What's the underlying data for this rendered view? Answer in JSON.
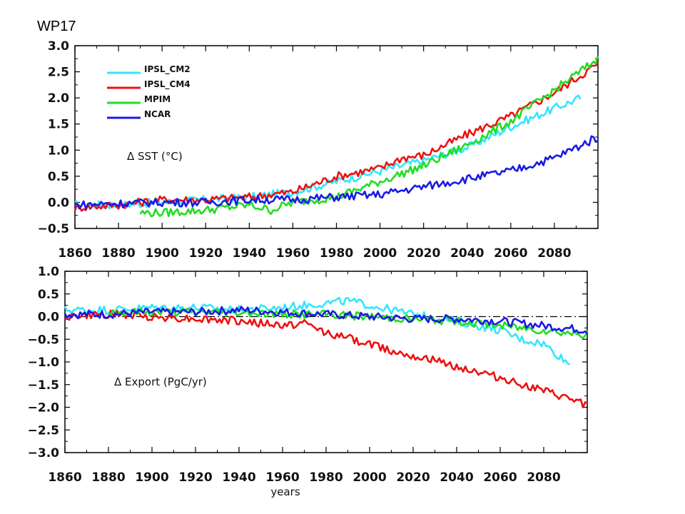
{
  "page": {
    "title": "WP17"
  },
  "colors": {
    "IPSL CM2": "#33e6ff",
    "IPSL CM4": "#ee1111",
    "MPIM": "#22dd22",
    "NCAR": "#1a1ae6"
  },
  "chart_data": [
    {
      "type": "line",
      "annotation": "Δ SST (°C)",
      "xlabel": "",
      "ylabel": "",
      "xlim": [
        1860,
        2100
      ],
      "ylim": [
        -0.5,
        3.0
      ],
      "x_ticks": [
        1860,
        1880,
        1900,
        1920,
        1940,
        1960,
        1980,
        2000,
        2020,
        2040,
        2060,
        2080
      ],
      "x_tick_labels": [
        "1860",
        "1880",
        "1900",
        "1920",
        "1940",
        "1960",
        "1980",
        "2000",
        "2020",
        "2040",
        "2060",
        "2080"
      ],
      "y_ticks": [
        -0.5,
        0.0,
        0.5,
        1.0,
        1.5,
        2.0,
        2.5,
        3.0
      ],
      "y_tick_labels": [
        "−0.5",
        "0.0",
        "0.5",
        "1.0",
        "1.5",
        "2.0",
        "2.5",
        "3.0"
      ],
      "legend": {
        "position": "top-left",
        "entries": [
          "IPSL_CM2",
          "IPSL_CM4",
          "MPIM",
          "NCAR"
        ]
      },
      "series": [
        {
          "name": "IPSL_CM2",
          "color": "#33e6ff",
          "x": [
            1860,
            1880,
            1900,
            1920,
            1940,
            1960,
            1970,
            1980,
            2000,
            2020,
            2040,
            2060,
            2080,
            2092
          ],
          "y": [
            -0.05,
            -0.05,
            0.0,
            0.05,
            0.1,
            0.2,
            0.3,
            0.4,
            0.6,
            0.8,
            1.05,
            1.45,
            1.8,
            2.0
          ]
        },
        {
          "name": "IPSL_CM4",
          "color": "#ee1111",
          "x": [
            1860,
            1880,
            1900,
            1920,
            1940,
            1960,
            1970,
            1980,
            2000,
            2010,
            2020,
            2040,
            2060,
            2080,
            2100
          ],
          "y": [
            -0.1,
            -0.05,
            0.05,
            0.05,
            0.1,
            0.2,
            0.35,
            0.5,
            0.65,
            0.85,
            0.9,
            1.3,
            1.65,
            2.1,
            2.65
          ]
        },
        {
          "name": "MPIM",
          "color": "#22dd22",
          "x": [
            1890,
            1900,
            1920,
            1940,
            1950,
            1960,
            1980,
            2000,
            2020,
            2040,
            2060,
            2080,
            2100
          ],
          "y": [
            -0.2,
            -0.2,
            -0.15,
            -0.05,
            -0.15,
            0.0,
            0.1,
            0.4,
            0.7,
            1.1,
            1.55,
            2.15,
            2.75
          ]
        },
        {
          "name": "NCAR",
          "color": "#1a1ae6",
          "x": [
            1860,
            1880,
            1900,
            1920,
            1940,
            1960,
            1980,
            2000,
            2020,
            2040,
            2060,
            2080,
            2100
          ],
          "y": [
            -0.05,
            -0.02,
            0.0,
            0.0,
            0.05,
            0.05,
            0.1,
            0.15,
            0.3,
            0.45,
            0.6,
            0.85,
            1.25
          ]
        }
      ]
    },
    {
      "type": "line",
      "annotation": "Δ Export (PgC/yr)",
      "xlabel": "years",
      "ylabel": "",
      "xlim": [
        1860,
        2100
      ],
      "ylim": [
        -3.0,
        1.0
      ],
      "x_ticks": [
        1860,
        1880,
        1900,
        1920,
        1940,
        1960,
        1980,
        2000,
        2020,
        2040,
        2060,
        2080
      ],
      "x_tick_labels": [
        "1860",
        "1880",
        "1900",
        "1920",
        "1940",
        "1960",
        "1980",
        "2000",
        "2020",
        "2040",
        "2060",
        "2080"
      ],
      "y_ticks": [
        -3.0,
        -2.5,
        -2.0,
        -1.5,
        -1.0,
        -0.5,
        0.0,
        0.5,
        1.0
      ],
      "y_tick_labels": [
        "−3.0",
        "−2.5",
        "−2.0",
        "−1.5",
        "−1.0",
        "−0.5",
        "0.0",
        "0.5",
        "1.0"
      ],
      "reference_line": 0.0,
      "series": [
        {
          "name": "IPSL_CM2",
          "color": "#33e6ff",
          "x": [
            1860,
            1880,
            1900,
            1920,
            1940,
            1960,
            1980,
            1990,
            2000,
            2020,
            2040,
            2060,
            2070,
            2080,
            2092
          ],
          "y": [
            0.15,
            0.15,
            0.2,
            0.2,
            0.15,
            0.2,
            0.3,
            0.35,
            0.25,
            0.05,
            -0.1,
            -0.3,
            -0.5,
            -0.6,
            -1.05
          ]
        },
        {
          "name": "IPSL_CM4",
          "color": "#ee1111",
          "x": [
            1860,
            1880,
            1900,
            1920,
            1940,
            1960,
            1970,
            1980,
            2000,
            2010,
            2020,
            2040,
            2060,
            2080,
            2100
          ],
          "y": [
            0.0,
            0.05,
            0.0,
            -0.05,
            -0.1,
            -0.2,
            -0.15,
            -0.35,
            -0.6,
            -0.75,
            -0.85,
            -1.1,
            -1.35,
            -1.65,
            -1.95
          ]
        },
        {
          "name": "MPIM",
          "color": "#22dd22",
          "x": [
            1880,
            1900,
            1920,
            1940,
            1960,
            1980,
            2000,
            2020,
            2040,
            2060,
            2080,
            2100
          ],
          "y": [
            0.1,
            0.1,
            0.1,
            0.1,
            0.05,
            0.05,
            0.0,
            -0.05,
            -0.1,
            -0.2,
            -0.3,
            -0.4
          ]
        },
        {
          "name": "NCAR",
          "color": "#1a1ae6",
          "x": [
            1860,
            1880,
            1900,
            1920,
            1940,
            1960,
            1980,
            2000,
            2020,
            2040,
            2060,
            2080,
            2100
          ],
          "y": [
            0.05,
            0.05,
            0.1,
            0.1,
            0.15,
            0.1,
            0.05,
            0.0,
            -0.05,
            -0.05,
            -0.1,
            -0.2,
            -0.3
          ]
        }
      ]
    }
  ]
}
